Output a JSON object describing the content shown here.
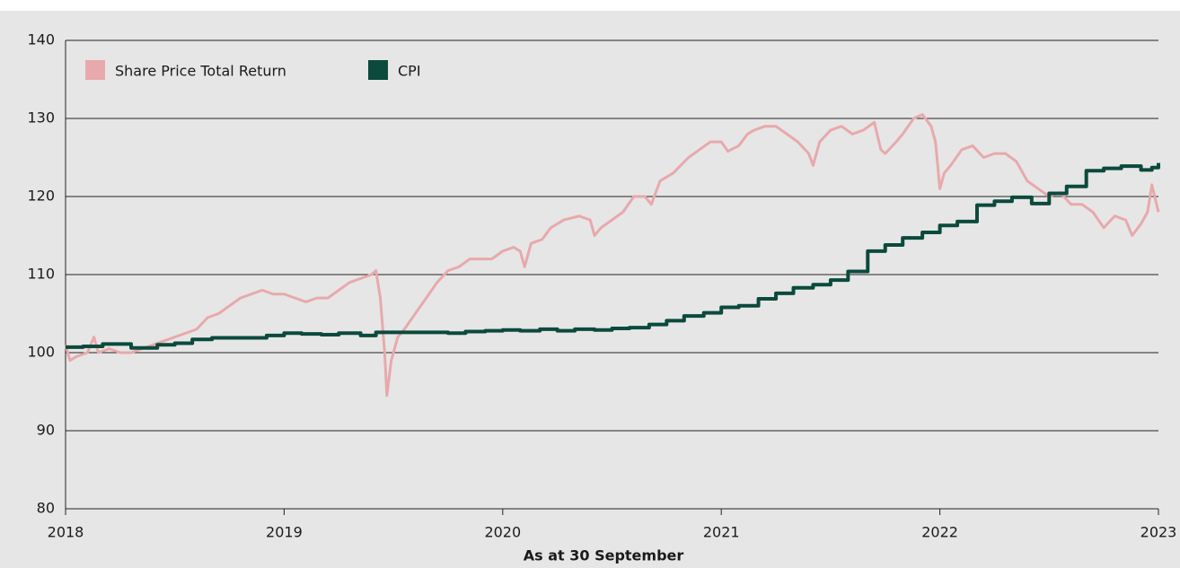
{
  "chart_data": {
    "type": "line",
    "xlabel": "As at 30 September",
    "xlim": [
      2018,
      2023
    ],
    "xticks": [
      2018,
      2019,
      2020,
      2021,
      2022,
      2023
    ],
    "ylim": [
      80,
      140
    ],
    "yticks": [
      80,
      90,
      100,
      110,
      120,
      130,
      140
    ],
    "grid": true,
    "legend": "upper left",
    "series": [
      {
        "name": "Share Price Total Return",
        "color": "#e8a9ac",
        "x": [
          2018.0,
          2018.02,
          2018.05,
          2018.1,
          2018.13,
          2018.15,
          2018.2,
          2018.25,
          2018.3,
          2018.35,
          2018.4,
          2018.45,
          2018.5,
          2018.55,
          2018.6,
          2018.65,
          2018.7,
          2018.75,
          2018.8,
          2018.85,
          2018.9,
          2018.95,
          2019.0,
          2019.05,
          2019.1,
          2019.15,
          2019.2,
          2019.25,
          2019.3,
          2019.35,
          2019.4,
          2019.42,
          2019.44,
          2019.46,
          2019.47,
          2019.49,
          2019.52,
          2019.55,
          2019.6,
          2019.65,
          2019.7,
          2019.75,
          2019.8,
          2019.85,
          2019.9,
          2019.95,
          2020.0,
          2020.05,
          2020.08,
          2020.1,
          2020.13,
          2020.18,
          2020.22,
          2020.28,
          2020.35,
          2020.4,
          2020.42,
          2020.45,
          2020.5,
          2020.55,
          2020.6,
          2020.65,
          2020.68,
          2020.72,
          2020.78,
          2020.85,
          2020.9,
          2020.95,
          2021.0,
          2021.03,
          2021.08,
          2021.12,
          2021.15,
          2021.2,
          2021.25,
          2021.3,
          2021.35,
          2021.4,
          2021.42,
          2021.45,
          2021.5,
          2021.55,
          2021.6,
          2021.65,
          2021.7,
          2021.73,
          2021.75,
          2021.8,
          2021.83,
          2021.88,
          2021.92,
          2021.96,
          2021.98,
          2022.0,
          2022.02,
          2022.05,
          2022.1,
          2022.15,
          2022.2,
          2022.25,
          2022.3,
          2022.35,
          2022.4,
          2022.45,
          2022.5,
          2022.55,
          2022.6,
          2022.65,
          2022.7,
          2022.75,
          2022.8,
          2022.85,
          2022.88,
          2022.92,
          2022.95,
          2022.97,
          2023.0
        ],
        "values": [
          101,
          99,
          99.5,
          100,
          102,
          100,
          100.5,
          100,
          100,
          100.5,
          101,
          101.5,
          102,
          102.5,
          103,
          104.5,
          105,
          106,
          107,
          107.5,
          108,
          107.5,
          107.5,
          107,
          106.5,
          107,
          107,
          108,
          109,
          109.5,
          110,
          110.5,
          107,
          100,
          94.5,
          99,
          102,
          103,
          105,
          107,
          109,
          110.5,
          111,
          112,
          112,
          112,
          113,
          113.5,
          113,
          111,
          114,
          114.5,
          116,
          117,
          117.5,
          117,
          115,
          116,
          117,
          118,
          120,
          120,
          119,
          122,
          123,
          125,
          126,
          127,
          127,
          125.8,
          126.5,
          128,
          128.5,
          129,
          129,
          128,
          127,
          125.5,
          124,
          127,
          128.5,
          129,
          128,
          128.5,
          129.5,
          126,
          125.5,
          127,
          128,
          130,
          130.5,
          129,
          127,
          121,
          123,
          124,
          126,
          126.5,
          125,
          125.5,
          125.5,
          124.5,
          122,
          121,
          120,
          120.5,
          119,
          119,
          118,
          116,
          117.5,
          117,
          115,
          116.5,
          118,
          121.5,
          118
        ]
      },
      {
        "name": "CPI",
        "color": "#0b4a3c",
        "drawstyle": "steps-post",
        "x": [
          2018.0,
          2018.08,
          2018.17,
          2018.3,
          2018.42,
          2018.5,
          2018.58,
          2018.67,
          2018.92,
          2019.0,
          2019.08,
          2019.17,
          2019.25,
          2019.35,
          2019.42,
          2019.6,
          2019.75,
          2019.83,
          2019.92,
          2020.0,
          2020.08,
          2020.17,
          2020.25,
          2020.33,
          2020.42,
          2020.5,
          2020.58,
          2020.67,
          2020.75,
          2020.83,
          2020.92,
          2021.0,
          2021.08,
          2021.17,
          2021.25,
          2021.33,
          2021.42,
          2021.5,
          2021.58,
          2021.67,
          2021.75,
          2021.83,
          2021.92,
          2022.0,
          2022.08,
          2022.17,
          2022.25,
          2022.33,
          2022.42,
          2022.5,
          2022.58,
          2022.67,
          2022.75,
          2022.83,
          2022.92,
          2022.97,
          2023.0
        ],
        "values": [
          100.7,
          100.8,
          101.1,
          100.6,
          101.0,
          101.2,
          101.7,
          101.9,
          102.2,
          102.5,
          102.4,
          102.3,
          102.5,
          102.2,
          102.6,
          102.6,
          102.5,
          102.7,
          102.8,
          102.9,
          102.8,
          103.0,
          102.8,
          103.0,
          102.9,
          103.1,
          103.2,
          103.6,
          104.1,
          104.7,
          105.1,
          105.8,
          106.0,
          106.9,
          107.6,
          108.3,
          108.7,
          109.3,
          110.4,
          113.0,
          113.8,
          114.7,
          115.4,
          116.3,
          116.8,
          118.9,
          119.4,
          119.9,
          119.1,
          120.4,
          121.3,
          123.3,
          123.6,
          123.9,
          123.4,
          123.7,
          124.3
        ]
      }
    ]
  }
}
